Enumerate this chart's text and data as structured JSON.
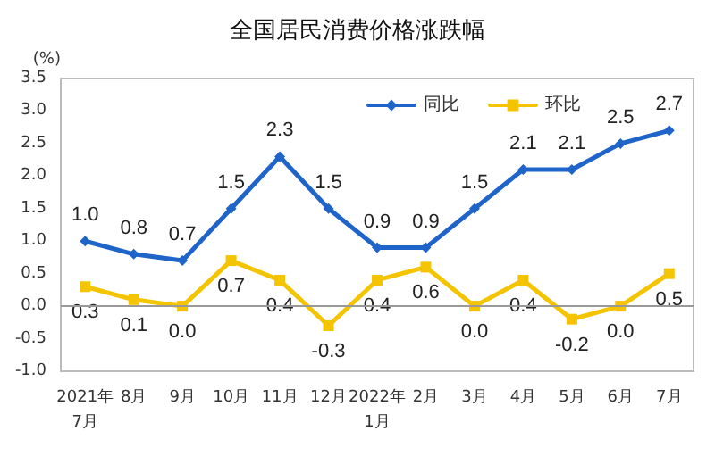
{
  "chart_data": {
    "type": "line",
    "title": "全国居民消费价格涨跌幅",
    "ylabel": "(%)",
    "categories": [
      "2021年\n7月",
      "8月",
      "9月",
      "10月",
      "11月",
      "12月",
      "2022年\n1月",
      "2月",
      "3月",
      "4月",
      "5月",
      "6月",
      "7月"
    ],
    "series": [
      {
        "name": "同比",
        "color": "#1f64c8",
        "marker": "diamond",
        "values": [
          1.0,
          0.8,
          0.7,
          1.5,
          2.3,
          1.5,
          0.9,
          0.9,
          1.5,
          2.1,
          2.1,
          2.5,
          2.7
        ],
        "value_labels": [
          "1.0",
          "0.8",
          "0.7",
          "1.5",
          "2.3",
          "1.5",
          "0.9",
          "0.9",
          "1.5",
          "2.1",
          "2.1",
          "2.5",
          "2.7"
        ]
      },
      {
        "name": "环比",
        "color": "#f5c400",
        "marker": "square",
        "values": [
          0.3,
          0.1,
          0.0,
          0.7,
          0.4,
          -0.3,
          0.4,
          0.6,
          0.0,
          0.4,
          -0.2,
          0.0,
          0.5
        ],
        "value_labels": [
          "0.3",
          "0.1",
          "0.0",
          "0.7",
          "0.4",
          "-0.3",
          "0.4",
          "0.6",
          "0.0",
          "0.4",
          "-0.2",
          "0.0",
          "0.5"
        ]
      }
    ],
    "ylim": [
      -1.0,
      3.5
    ],
    "yticks": [
      {
        "value": -1.0,
        "label": "-1.0"
      },
      -0.5,
      {
        "value": 0,
        "label": "0.0"
      },
      0.5,
      {
        "value": 1,
        "label": "1.0"
      },
      1.5,
      {
        "value": 2,
        "label": "2.0"
      },
      2.5,
      {
        "value": 3,
        "label": "3.0"
      },
      3.5
    ],
    "ref_lines": [
      {
        "axis": "y",
        "value": 0,
        "color": "#999999"
      }
    ],
    "legend": "top right",
    "line_style": "solid"
  }
}
